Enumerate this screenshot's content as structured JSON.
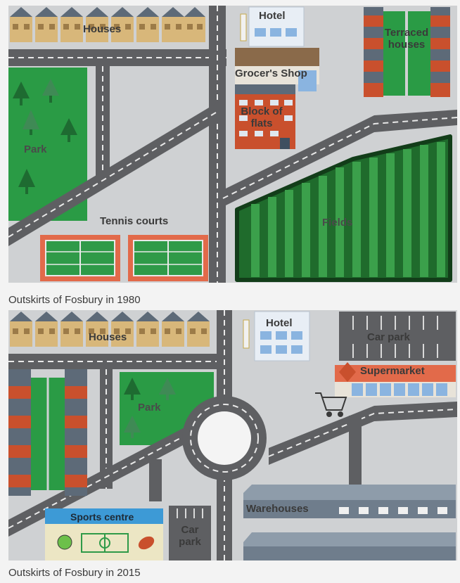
{
  "maps": [
    {
      "caption": "Outskirts of Fosbury in 1980",
      "labels": {
        "houses": "Houses",
        "hotel": "Hotel",
        "terraced": "Terraced houses",
        "grocer": "Grocer's Shop",
        "flats": "Block of flats",
        "park": "Park",
        "tennis": "Tennis courts",
        "fields": "Fields"
      }
    },
    {
      "caption": "Outskirts of Fosbury in 2015",
      "labels": {
        "houses": "Houses",
        "hotel": "Hotel",
        "carpark_top": "Car park",
        "supermarket": "Supermarket",
        "park": "Park",
        "sports": "Sports centre",
        "carpark_bottom": "Car park",
        "warehouses": "Warehouses"
      }
    }
  ],
  "colors": {
    "ground": "#cfd1d3",
    "road": "#5e5f62",
    "park": "#2a9b45",
    "tree": "#1e6b31",
    "field_dark": "#1f6b2c",
    "field_light": "#3ba04b",
    "brick": "#c9502d",
    "roof": "#5d6a78",
    "house_wall": "#d8b77a",
    "hotel_window": "#8ab4e0",
    "court_border": "#e26a4a",
    "court": "#2f9a48",
    "warehouse": "#7a8898"
  }
}
